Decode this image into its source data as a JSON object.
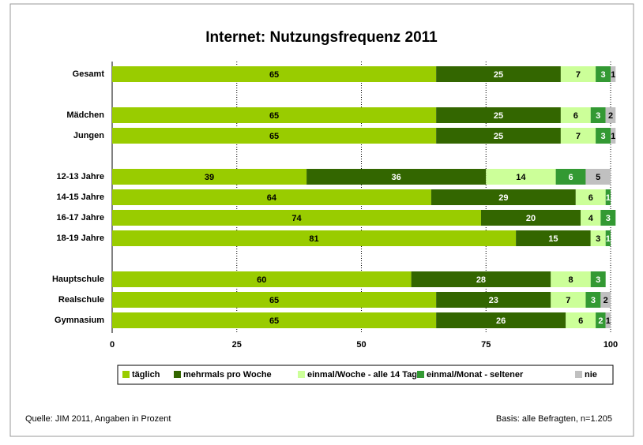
{
  "chart_data": {
    "type": "stacked-bar-horizontal",
    "title": "Internet: Nutzungsfrequenz 2011",
    "categories": [
      "Gesamt",
      null,
      "Mädchen",
      "Jungen",
      null,
      "12-13 Jahre",
      "14-15 Jahre",
      "16-17 Jahre",
      "18-19 Jahre",
      null,
      "Hauptschule",
      "Realschule",
      "Gymnasium"
    ],
    "series": [
      {
        "name": "täglich",
        "color": "#99cc00",
        "values": [
          65,
          null,
          65,
          65,
          null,
          39,
          64,
          74,
          81,
          null,
          60,
          65,
          65
        ]
      },
      {
        "name": "mehrmals pro Woche",
        "color": "#336600",
        "values": [
          25,
          null,
          25,
          25,
          null,
          36,
          29,
          20,
          15,
          null,
          28,
          23,
          26
        ]
      },
      {
        "name": "einmal/Woche - alle 14 Tage",
        "color": "#ccff99",
        "values": [
          7,
          null,
          6,
          7,
          null,
          14,
          6,
          4,
          3,
          null,
          8,
          7,
          6
        ]
      },
      {
        "name": "einmal/Monat - seltener",
        "color": "#339933",
        "values": [
          3,
          null,
          3,
          3,
          null,
          6,
          1,
          3,
          1,
          null,
          3,
          3,
          2
        ]
      },
      {
        "name": "nie",
        "color": "#c0c0c0",
        "values": [
          1,
          null,
          2,
          1,
          null,
          5,
          null,
          null,
          null,
          null,
          null,
          2,
          1
        ]
      }
    ],
    "xlim": [
      0,
      100
    ],
    "xticks": [
      0,
      25,
      50,
      75,
      100
    ],
    "grid": true,
    "source": "Quelle: JIM 2011, Angaben in Prozent",
    "note": "Basis: alle Befragten, n=1.205"
  }
}
